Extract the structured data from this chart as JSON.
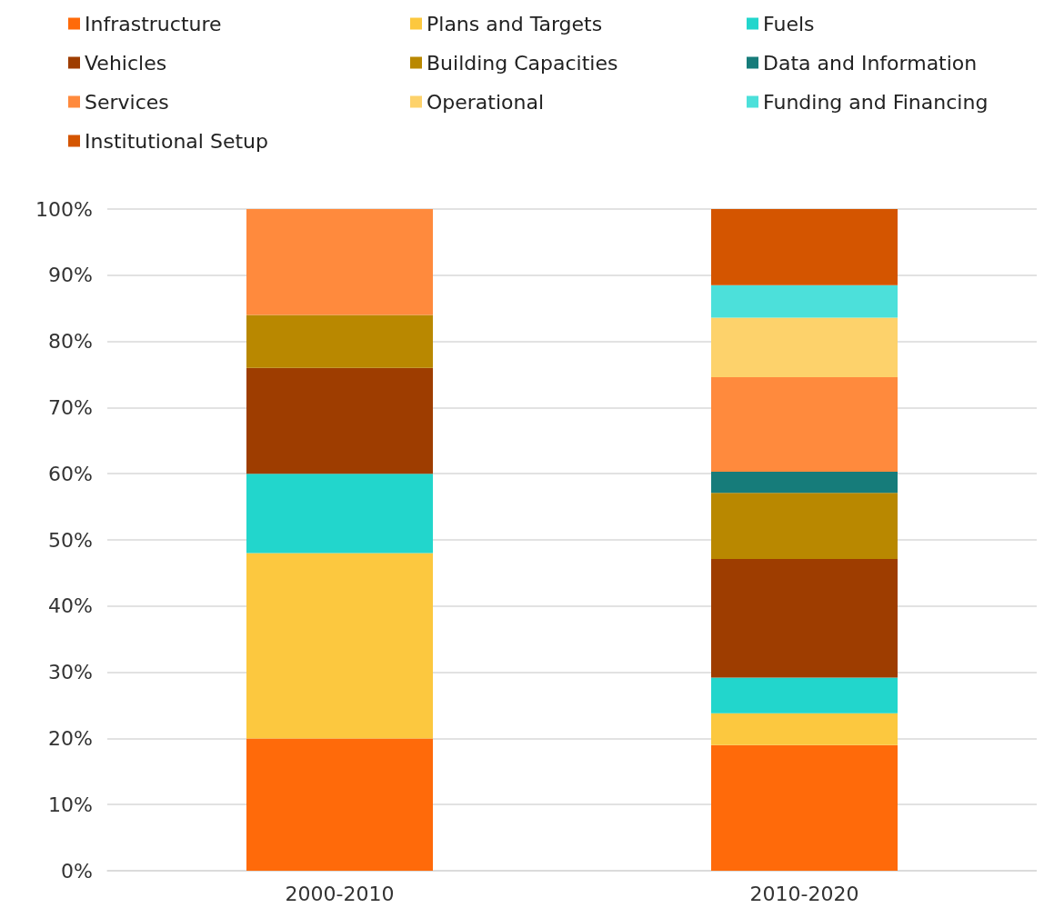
{
  "chart_data": {
    "type": "bar",
    "stacked": true,
    "categories": [
      "2000-2010",
      "2010-2020"
    ],
    "series": [
      {
        "name": "Infrastructure",
        "color": "#ff6a0a",
        "values": [
          20,
          19
        ]
      },
      {
        "name": "Plans and Targets",
        "color": "#fcc83f",
        "values": [
          28,
          4.8
        ]
      },
      {
        "name": "Fuels",
        "color": "#22d6cc",
        "values": [
          12,
          5.4
        ]
      },
      {
        "name": "Vehicles",
        "color": "#9e3d00",
        "values": [
          16,
          17.9
        ]
      },
      {
        "name": "Building Capacities",
        "color": "#b98800",
        "values": [
          8,
          10
        ]
      },
      {
        "name": "Data and Information",
        "color": "#167c7a",
        "values": [
          null,
          3.2
        ]
      },
      {
        "name": "Services",
        "color": "#ff8a3d",
        "values": [
          16,
          14.3
        ]
      },
      {
        "name": "Operational",
        "color": "#fdd26b",
        "values": [
          null,
          9
        ]
      },
      {
        "name": "Funding and Financing",
        "color": "#4ce0da",
        "values": [
          null,
          4.9
        ]
      },
      {
        "name": "Institutional Setup",
        "color": "#d45500",
        "values": [
          null,
          11.5
        ]
      }
    ],
    "ylim": [
      0,
      100
    ],
    "yticks": [
      {
        "value": 0,
        "label": "0%"
      },
      {
        "value": 10,
        "label": "10%"
      },
      {
        "value": 20,
        "label": "20%"
      },
      {
        "value": 30,
        "label": "30%"
      },
      {
        "value": 40,
        "label": "40%"
      },
      {
        "value": 50,
        "label": "50%"
      },
      {
        "value": 60,
        "label": "60%"
      },
      {
        "value": 70,
        "label": "70%"
      },
      {
        "value": 80,
        "label": "80%"
      },
      {
        "value": 90,
        "label": "90%"
      },
      {
        "value": 100,
        "label": "100%"
      }
    ],
    "grid": "y",
    "legend": "top"
  }
}
